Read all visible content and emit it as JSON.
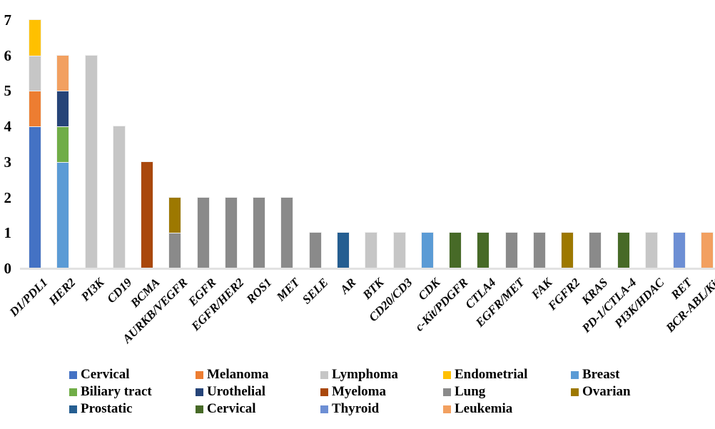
{
  "chart_data": {
    "type": "bar",
    "stacked": true,
    "title": "",
    "xlabel": "",
    "ylabel": "",
    "ylim": [
      0,
      7
    ],
    "yticks": [
      0,
      1,
      2,
      3,
      4,
      5,
      6,
      7
    ],
    "grid": false,
    "legend_position": "bottom",
    "categories": [
      "D1/PDL1",
      "HER2",
      "PI3K",
      "CD19",
      "BCMA",
      "AURKB/VEGFR",
      "EGFR",
      "EGFR/HER2",
      "ROS1",
      "MET",
      "SELE",
      "AR",
      "BTK",
      "CD20/CD3",
      "CDK",
      "c-Kit/PDGFR",
      "CTLA4",
      "EGFR/MET",
      "FAK",
      "FGFR2",
      "KRAS",
      "PD-1/CTLA-4",
      "PI3K/HDAC",
      "RET",
      "BCR-ABL/Kit"
    ],
    "bars": [
      {
        "label": "D1/PDL1",
        "total": 7,
        "segments": [
          {
            "key": "cervical_blue",
            "name": "Cervical",
            "value": 4
          },
          {
            "key": "melanoma",
            "name": "Melanoma",
            "value": 1
          },
          {
            "key": "lymphoma",
            "name": "Lymphoma",
            "value": 1
          },
          {
            "key": "endometrial",
            "name": "Endometrial",
            "value": 1
          }
        ]
      },
      {
        "label": "HER2",
        "total": 6,
        "segments": [
          {
            "key": "breast",
            "name": "Breast",
            "value": 3
          },
          {
            "key": "biliary_tract",
            "name": "Biliary tract",
            "value": 1
          },
          {
            "key": "urothelial",
            "name": "Urothelial",
            "value": 1
          },
          {
            "key": "leukemia",
            "name": "Leukemia",
            "value": 1
          }
        ]
      },
      {
        "label": "PI3K",
        "total": 6,
        "segments": [
          {
            "key": "lymphoma",
            "name": "Lymphoma",
            "value": 6
          }
        ]
      },
      {
        "label": "CD19",
        "total": 4,
        "segments": [
          {
            "key": "lymphoma",
            "name": "Lymphoma",
            "value": 4
          }
        ]
      },
      {
        "label": "BCMA",
        "total": 3,
        "segments": [
          {
            "key": "myeloma",
            "name": "Myeloma",
            "value": 3
          }
        ]
      },
      {
        "label": "AURKB/VEGFR",
        "total": 2,
        "segments": [
          {
            "key": "lung",
            "name": "Lung",
            "value": 1
          },
          {
            "key": "ovarian",
            "name": "Ovarian",
            "value": 1
          }
        ]
      },
      {
        "label": "EGFR",
        "total": 2,
        "segments": [
          {
            "key": "lung",
            "name": "Lung",
            "value": 2
          }
        ]
      },
      {
        "label": "EGFR/HER2",
        "total": 2,
        "segments": [
          {
            "key": "lung",
            "name": "Lung",
            "value": 2
          }
        ]
      },
      {
        "label": "ROS1",
        "total": 2,
        "segments": [
          {
            "key": "lung",
            "name": "Lung",
            "value": 2
          }
        ]
      },
      {
        "label": "MET",
        "total": 2,
        "segments": [
          {
            "key": "lung",
            "name": "Lung",
            "value": 2
          }
        ]
      },
      {
        "label": "SELE",
        "total": 1,
        "segments": [
          {
            "key": "lung",
            "name": "Lung",
            "value": 1
          }
        ]
      },
      {
        "label": "AR",
        "total": 1,
        "segments": [
          {
            "key": "prostatic",
            "name": "Prostatic",
            "value": 1
          }
        ]
      },
      {
        "label": "BTK",
        "total": 1,
        "segments": [
          {
            "key": "lymphoma",
            "name": "Lymphoma",
            "value": 1
          }
        ]
      },
      {
        "label": "CD20/CD3",
        "total": 1,
        "segments": [
          {
            "key": "lymphoma",
            "name": "Lymphoma",
            "value": 1
          }
        ]
      },
      {
        "label": "CDK",
        "total": 1,
        "segments": [
          {
            "key": "breast",
            "name": "Breast",
            "value": 1
          }
        ]
      },
      {
        "label": "c-Kit/PDGFR",
        "total": 1,
        "segments": [
          {
            "key": "cervical_green",
            "name": "Cervical",
            "value": 1
          }
        ]
      },
      {
        "label": "CTLA4",
        "total": 1,
        "segments": [
          {
            "key": "cervical_green",
            "name": "Cervical",
            "value": 1
          }
        ]
      },
      {
        "label": "EGFR/MET",
        "total": 1,
        "segments": [
          {
            "key": "lung",
            "name": "Lung",
            "value": 1
          }
        ]
      },
      {
        "label": "FAK",
        "total": 1,
        "segments": [
          {
            "key": "lung",
            "name": "Lung",
            "value": 1
          }
        ]
      },
      {
        "label": "FGFR2",
        "total": 1,
        "segments": [
          {
            "key": "ovarian",
            "name": "Ovarian",
            "value": 1
          }
        ]
      },
      {
        "label": "KRAS",
        "total": 1,
        "segments": [
          {
            "key": "lung",
            "name": "Lung",
            "value": 1
          }
        ]
      },
      {
        "label": "PD-1/CTLA-4",
        "total": 1,
        "segments": [
          {
            "key": "cervical_green",
            "name": "Cervical",
            "value": 1
          }
        ]
      },
      {
        "label": "PI3K/HDAC",
        "total": 1,
        "segments": [
          {
            "key": "lymphoma",
            "name": "Lymphoma",
            "value": 1
          }
        ]
      },
      {
        "label": "RET",
        "total": 1,
        "segments": [
          {
            "key": "thyroid",
            "name": "Thyroid",
            "value": 1
          }
        ]
      },
      {
        "label": "BCR-ABL/Kit",
        "total": 1,
        "segments": [
          {
            "key": "leukemia",
            "name": "Leukemia",
            "value": 1
          }
        ]
      }
    ],
    "legend": [
      {
        "label": "Cervical",
        "key": "cervical_blue",
        "row": 0,
        "col": 0
      },
      {
        "label": "Melanoma",
        "key": "melanoma",
        "row": 0,
        "col": 1
      },
      {
        "label": "Lymphoma",
        "key": "lymphoma",
        "row": 0,
        "col": 2
      },
      {
        "label": "Endometrial",
        "key": "endometrial",
        "row": 0,
        "col": 3
      },
      {
        "label": "Breast",
        "key": "breast",
        "row": 0,
        "col": 4
      },
      {
        "label": "Biliary tract",
        "key": "biliary_tract",
        "row": 1,
        "col": 0
      },
      {
        "label": "Urothelial",
        "key": "urothelial",
        "row": 1,
        "col": 1
      },
      {
        "label": "Myeloma",
        "key": "myeloma",
        "row": 1,
        "col": 2
      },
      {
        "label": "Lung",
        "key": "lung",
        "row": 1,
        "col": 3
      },
      {
        "label": "Ovarian",
        "key": "ovarian",
        "row": 1,
        "col": 4
      },
      {
        "label": "Prostatic",
        "key": "prostatic",
        "row": 2,
        "col": 0
      },
      {
        "label": "Cervical",
        "key": "cervical_green",
        "row": 2,
        "col": 1
      },
      {
        "label": "Thyroid",
        "key": "thyroid",
        "row": 2,
        "col": 2
      },
      {
        "label": "Leukemia",
        "key": "leukemia",
        "row": 2,
        "col": 3
      }
    ]
  },
  "colors": {
    "cervical_blue": "#4472C4",
    "melanoma": "#ED7D31",
    "lymphoma": "#C6C6C6",
    "endometrial": "#FFC000",
    "breast": "#5B9BD5",
    "biliary_tract": "#70AD47",
    "urothelial": "#264478",
    "myeloma": "#A9480C",
    "lung": "#8A8A8A",
    "ovarian": "#9D7800",
    "prostatic": "#255E91",
    "cervical_green": "#476A27",
    "thyroid": "#6D8FD4",
    "leukemia": "#F2A060",
    "axis_line": "#E2E2E2",
    "text": "#000000"
  }
}
